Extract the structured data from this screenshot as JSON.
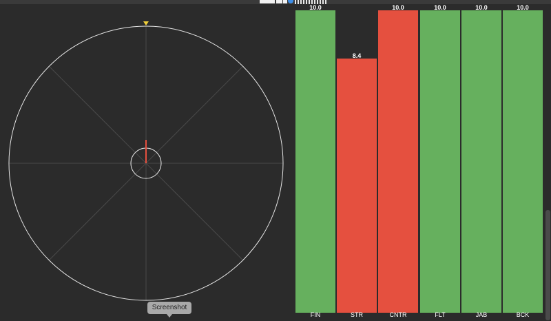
{
  "tooltip": {
    "label": "Screenshot"
  },
  "radar": {
    "heading_deg": 0,
    "colors": {
      "ring": "#e8e8e8",
      "grid": "#4a4a4a",
      "needle": "#e5503f",
      "marker": "#f2d13a"
    }
  },
  "chart_data": {
    "type": "bar",
    "categories": [
      "FIN",
      "STR",
      "CNTR",
      "FLT",
      "JAB",
      "BCK"
    ],
    "values": [
      10.0,
      8.4,
      10.0,
      10.0,
      10.0,
      10.0
    ],
    "value_labels": [
      "10.0",
      "8.4",
      "10.0",
      "10.0",
      "10.0",
      "10.0"
    ],
    "colors": [
      "#66b05e",
      "#e5503f",
      "#e5503f",
      "#66b05e",
      "#66b05e",
      "#66b05e"
    ],
    "ylim": [
      0,
      10
    ],
    "grid": false,
    "title": "",
    "xlabel": "",
    "ylabel": ""
  }
}
